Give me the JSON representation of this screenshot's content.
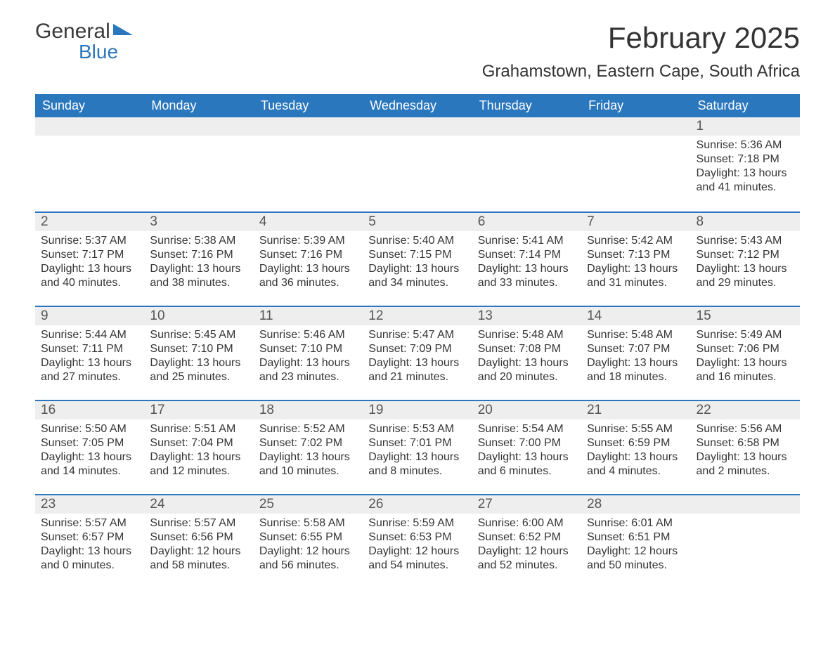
{
  "brand": {
    "name_top": "General",
    "name_bottom": "Blue"
  },
  "header": {
    "month_title": "February 2025",
    "location": "Grahamstown, Eastern Cape, South Africa"
  },
  "colors": {
    "brand_blue": "#2a77bd",
    "header_bg": "#2a77bd",
    "header_fg": "#ffffff",
    "row_stripe": "#eeeeee",
    "text": "#353535",
    "page_bg": "#ffffff"
  },
  "layout": {
    "columns": 7,
    "rows": 5,
    "first_weekday_index": 6,
    "days_in_month": 28
  },
  "weekdays": [
    "Sunday",
    "Monday",
    "Tuesday",
    "Wednesday",
    "Thursday",
    "Friday",
    "Saturday"
  ],
  "days": [
    {
      "n": 1,
      "sunrise": "5:36 AM",
      "sunset": "7:18 PM",
      "daylight": "13 hours and 41 minutes."
    },
    {
      "n": 2,
      "sunrise": "5:37 AM",
      "sunset": "7:17 PM",
      "daylight": "13 hours and 40 minutes."
    },
    {
      "n": 3,
      "sunrise": "5:38 AM",
      "sunset": "7:16 PM",
      "daylight": "13 hours and 38 minutes."
    },
    {
      "n": 4,
      "sunrise": "5:39 AM",
      "sunset": "7:16 PM",
      "daylight": "13 hours and 36 minutes."
    },
    {
      "n": 5,
      "sunrise": "5:40 AM",
      "sunset": "7:15 PM",
      "daylight": "13 hours and 34 minutes."
    },
    {
      "n": 6,
      "sunrise": "5:41 AM",
      "sunset": "7:14 PM",
      "daylight": "13 hours and 33 minutes."
    },
    {
      "n": 7,
      "sunrise": "5:42 AM",
      "sunset": "7:13 PM",
      "daylight": "13 hours and 31 minutes."
    },
    {
      "n": 8,
      "sunrise": "5:43 AM",
      "sunset": "7:12 PM",
      "daylight": "13 hours and 29 minutes."
    },
    {
      "n": 9,
      "sunrise": "5:44 AM",
      "sunset": "7:11 PM",
      "daylight": "13 hours and 27 minutes."
    },
    {
      "n": 10,
      "sunrise": "5:45 AM",
      "sunset": "7:10 PM",
      "daylight": "13 hours and 25 minutes."
    },
    {
      "n": 11,
      "sunrise": "5:46 AM",
      "sunset": "7:10 PM",
      "daylight": "13 hours and 23 minutes."
    },
    {
      "n": 12,
      "sunrise": "5:47 AM",
      "sunset": "7:09 PM",
      "daylight": "13 hours and 21 minutes."
    },
    {
      "n": 13,
      "sunrise": "5:48 AM",
      "sunset": "7:08 PM",
      "daylight": "13 hours and 20 minutes."
    },
    {
      "n": 14,
      "sunrise": "5:48 AM",
      "sunset": "7:07 PM",
      "daylight": "13 hours and 18 minutes."
    },
    {
      "n": 15,
      "sunrise": "5:49 AM",
      "sunset": "7:06 PM",
      "daylight": "13 hours and 16 minutes."
    },
    {
      "n": 16,
      "sunrise": "5:50 AM",
      "sunset": "7:05 PM",
      "daylight": "13 hours and 14 minutes."
    },
    {
      "n": 17,
      "sunrise": "5:51 AM",
      "sunset": "7:04 PM",
      "daylight": "13 hours and 12 minutes."
    },
    {
      "n": 18,
      "sunrise": "5:52 AM",
      "sunset": "7:02 PM",
      "daylight": "13 hours and 10 minutes."
    },
    {
      "n": 19,
      "sunrise": "5:53 AM",
      "sunset": "7:01 PM",
      "daylight": "13 hours and 8 minutes."
    },
    {
      "n": 20,
      "sunrise": "5:54 AM",
      "sunset": "7:00 PM",
      "daylight": "13 hours and 6 minutes."
    },
    {
      "n": 21,
      "sunrise": "5:55 AM",
      "sunset": "6:59 PM",
      "daylight": "13 hours and 4 minutes."
    },
    {
      "n": 22,
      "sunrise": "5:56 AM",
      "sunset": "6:58 PM",
      "daylight": "13 hours and 2 minutes."
    },
    {
      "n": 23,
      "sunrise": "5:57 AM",
      "sunset": "6:57 PM",
      "daylight": "13 hours and 0 minutes."
    },
    {
      "n": 24,
      "sunrise": "5:57 AM",
      "sunset": "6:56 PM",
      "daylight": "12 hours and 58 minutes."
    },
    {
      "n": 25,
      "sunrise": "5:58 AM",
      "sunset": "6:55 PM",
      "daylight": "12 hours and 56 minutes."
    },
    {
      "n": 26,
      "sunrise": "5:59 AM",
      "sunset": "6:53 PM",
      "daylight": "12 hours and 54 minutes."
    },
    {
      "n": 27,
      "sunrise": "6:00 AM",
      "sunset": "6:52 PM",
      "daylight": "12 hours and 52 minutes."
    },
    {
      "n": 28,
      "sunrise": "6:01 AM",
      "sunset": "6:51 PM",
      "daylight": "12 hours and 50 minutes."
    }
  ],
  "labels": {
    "sunrise": "Sunrise:",
    "sunset": "Sunset:",
    "daylight": "Daylight:"
  }
}
